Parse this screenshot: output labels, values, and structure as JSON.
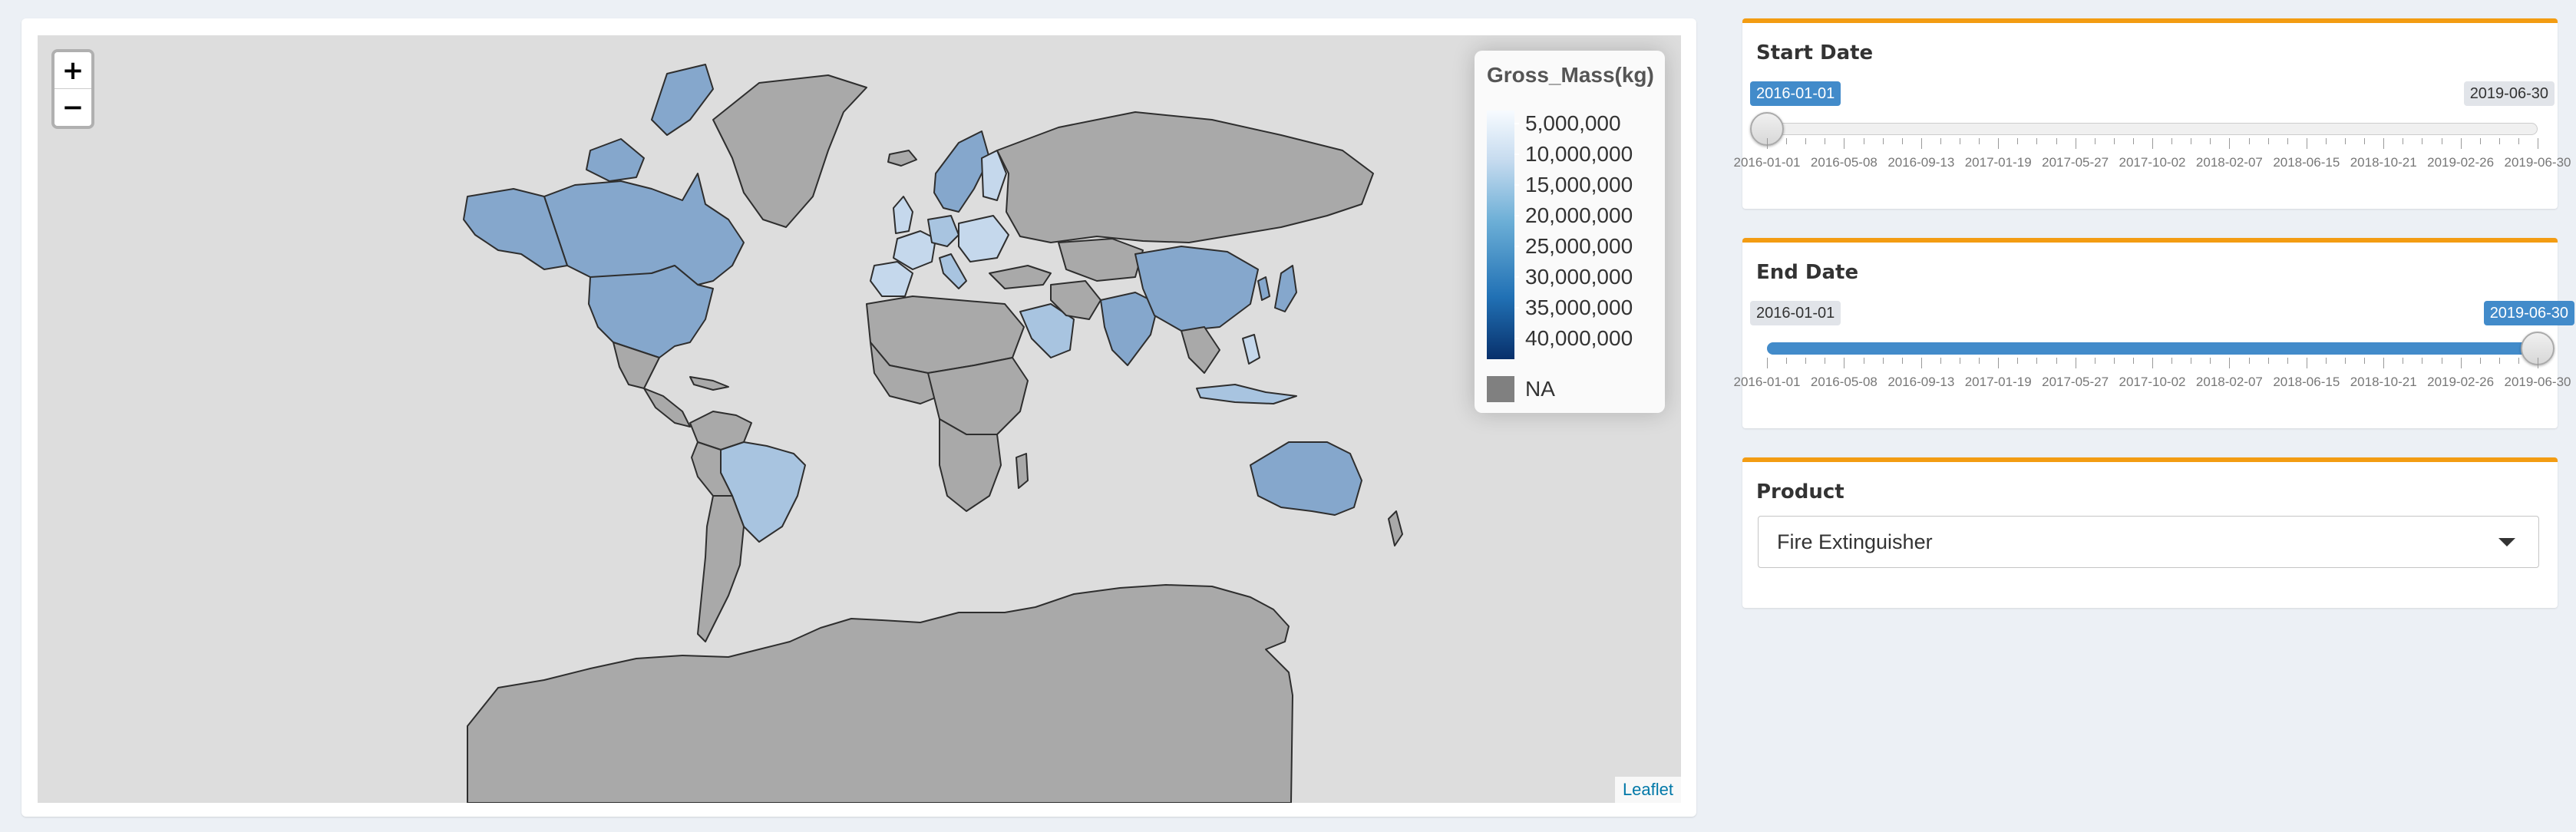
{
  "map": {
    "zoom_in_label": "+",
    "zoom_out_label": "−",
    "attribution": "Leaflet",
    "legend": {
      "title": "Gross_Mass(kg)",
      "labels": [
        "5,000,000",
        "10,000,000",
        "15,000,000",
        "20,000,000",
        "25,000,000",
        "30,000,000",
        "35,000,000",
        "40,000,000"
      ],
      "na_label": "NA",
      "ramp_colors": [
        "#f7fbff",
        "#c6dbef",
        "#6baed6",
        "#2171b5",
        "#08306b"
      ],
      "na_color": "#808080"
    },
    "colors": {
      "background": "#dddddd",
      "no_data_land": "#a9a9a9",
      "data_land_primary": "#85a7cc",
      "data_land_light": "#a8c4e0",
      "data_land_lighter": "#c5d8ec"
    }
  },
  "start_date": {
    "label": "Start Date",
    "value": "2016-01-01",
    "max_value": "2019-06-30",
    "position_fraction": 0.0
  },
  "end_date": {
    "label": "End Date",
    "value": "2019-06-30",
    "min_value": "2016-01-01",
    "position_fraction": 1.0
  },
  "slider_ticks": [
    "2016-01-01",
    "2016-05-08",
    "2016-09-13",
    "2017-01-19",
    "2017-05-27",
    "2017-10-02",
    "2018-02-07",
    "2018-06-15",
    "2018-10-21",
    "2019-02-26",
    "2019-06-30"
  ],
  "product": {
    "label": "Product",
    "selected": "Fire Extinguisher"
  },
  "accent_color": "#f39c12",
  "slider_color": "#428bca"
}
